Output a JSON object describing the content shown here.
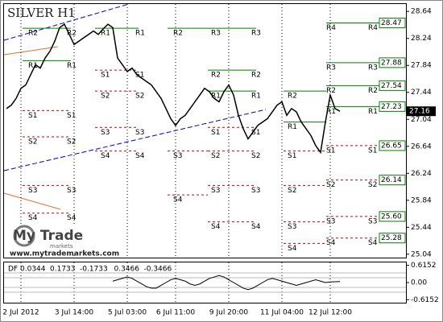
{
  "chart_data": {
    "type": "line",
    "title": "SILVER H1",
    "categories": [
      null,
      null,
      null,
      "2 Jul 2012",
      null,
      null,
      null,
      null,
      null,
      null,
      null,
      null,
      null,
      null,
      "3 Jul 14:00",
      null,
      null,
      null,
      null,
      null,
      null,
      null,
      null,
      null,
      null,
      "5 Jul 03:00",
      null,
      null,
      null,
      null,
      null,
      null,
      null,
      null,
      null,
      "6 Jul 11:00",
      null,
      null,
      null,
      null,
      null,
      null,
      null,
      null,
      null,
      null,
      "9 Jul 20:00",
      null,
      null,
      null,
      null,
      null,
      null,
      null,
      null,
      null,
      null,
      "11 Jul 04:00",
      null,
      null,
      null,
      null,
      null,
      null,
      null,
      null,
      null,
      "12 Jul 12:00",
      null,
      null
    ],
    "series": [
      {
        "color": "#000000",
        "values": [
          27.2,
          27.25,
          27.35,
          27.5,
          27.55,
          27.7,
          27.85,
          27.8,
          27.95,
          28.05,
          28.2,
          28.4,
          28.45,
          28.3,
          28.15,
          28.2,
          28.25,
          28.3,
          28.35,
          28.3,
          28.38,
          28.45,
          28.4,
          27.95,
          27.85,
          27.75,
          27.8,
          27.7,
          27.65,
          27.6,
          27.55,
          27.45,
          27.35,
          27.2,
          27.05,
          26.95,
          27.05,
          27.1,
          27.2,
          27.3,
          27.4,
          27.5,
          27.45,
          27.35,
          27.3,
          27.45,
          27.55,
          27.4,
          27.1,
          26.9,
          26.75,
          26.85,
          26.95,
          27.0,
          27.05,
          27.15,
          27.25,
          27.3,
          27.1,
          27.2,
          27.15,
          27.0,
          26.9,
          26.8,
          26.65,
          26.55,
          27.0,
          27.4,
          27.2,
          27.16
        ]
      }
    ],
    "ylim": [
      24.99,
      28.75
    ],
    "yticks": [
      28.64,
      28.24,
      27.84,
      27.44,
      27.04,
      26.64,
      26.24,
      25.84,
      25.44,
      25.04
    ],
    "grid": true,
    "current_price": 27.16,
    "level_labels": [
      28.47,
      27.88,
      27.54,
      27.23,
      26.65,
      26.14,
      {
        "value": 25.6,
        "label": "25.60"
      },
      25.28
    ],
    "pivot_colors": {
      "R": "#008000",
      "S": "#cc0000"
    },
    "pivots": [
      [
        {
          "label": "R2",
          "value": 28.39
        },
        {
          "label": "R1",
          "value": 27.91
        },
        {
          "label": "S1",
          "value": 27.17
        },
        {
          "label": "S2",
          "value": 26.78
        },
        {
          "label": "S3",
          "value": 26.06
        },
        {
          "label": "S4",
          "value": 25.65
        }
      ],
      [
        {
          "label": "R1",
          "value": 28.39
        },
        {
          "label": "S1",
          "value": 27.77
        },
        {
          "label": "S2",
          "value": 27.46
        },
        {
          "label": "S3",
          "value": 26.92
        },
        {
          "label": "S4",
          "value": 26.57
        }
      ],
      [
        {
          "label": "R2",
          "value": 28.39
        },
        {
          "label": "S3",
          "value": 26.57
        },
        {
          "label": "S4",
          "value": 25.92
        }
      ],
      [
        {
          "label": "R3",
          "value": 28.39
        },
        {
          "label": "R2",
          "value": 27.77
        },
        {
          "label": "R1",
          "value": 27.46
        },
        {
          "label": "S1",
          "value": 26.92
        },
        {
          "label": "S2",
          "value": 26.57
        },
        {
          "label": "S3",
          "value": 26.06
        },
        {
          "label": "S4",
          "value": 25.52
        }
      ],
      [
        {
          "label": "R2",
          "value": 27.46
        },
        {
          "label": "R1",
          "value": 27.0
        },
        {
          "label": "S1",
          "value": 26.57
        },
        {
          "label": "S2",
          "value": 26.06
        },
        {
          "label": "S3",
          "value": 25.52
        },
        {
          "label": "S4",
          "value": 25.2
        }
      ],
      [
        {
          "label": "R4",
          "value": 28.47
        },
        {
          "label": "R3",
          "value": 27.88
        },
        {
          "label": "R2",
          "value": 27.54
        },
        {
          "label": "R1",
          "value": 27.23
        },
        {
          "label": "S1",
          "value": 26.65
        },
        {
          "label": "S2",
          "value": 26.14
        },
        {
          "label": "S3",
          "value": 25.6
        },
        {
          "label": "S4",
          "value": 25.28
        }
      ]
    ],
    "annotations": [
      "My Trade",
      "markets",
      "www.mytrademarkets.com"
    ],
    "indicator": {
      "type": "line",
      "name": "DF",
      "values": [
        null,
        null,
        null,
        null,
        null,
        null,
        null,
        null,
        null,
        null,
        null,
        null,
        null,
        null,
        null,
        null,
        null,
        null,
        null,
        null,
        null,
        null,
        0.05,
        0.1,
        0.15,
        0.2,
        0.15,
        0.05,
        -0.05,
        -0.15,
        -0.2,
        -0.2,
        -0.1,
        0.0,
        0.1,
        0.15,
        0.1,
        0.05,
        -0.05,
        -0.1,
        -0.05,
        0.05,
        0.15,
        0.2,
        0.25,
        0.2,
        0.1,
        0.0,
        -0.1,
        -0.2,
        -0.25,
        -0.2,
        -0.1,
        0.0,
        0.1,
        0.15,
        0.1,
        0.05,
        0.0,
        -0.05,
        -0.1,
        -0.05,
        0.0,
        0.05,
        0.1,
        0.05,
        0.0,
        0.02,
        0.03,
        0.0344
      ],
      "levels": [
        0.0344,
        0.1733,
        -0.1733,
        0.3466,
        -0.3466
      ],
      "ylim": [
        -0.72,
        0.72
      ],
      "yticks": [
        0.6152,
        {
          "value": 0,
          "label": "0.00"
        },
        -0.6152
      ]
    }
  }
}
